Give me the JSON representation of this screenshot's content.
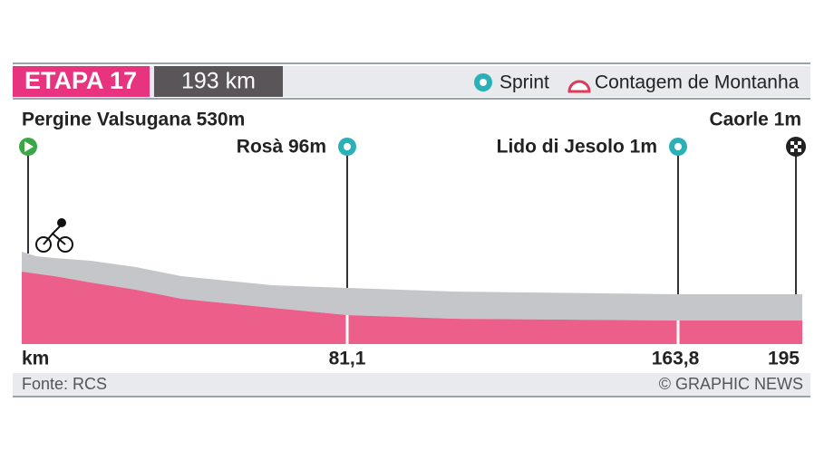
{
  "header": {
    "stage": "ETAPA 17",
    "distance": "193 km"
  },
  "legend": [
    {
      "label": "Sprint"
    },
    {
      "label": "Contagem de Montanha"
    }
  ],
  "locations": [
    {
      "label": "Pergine Valsugana 530m"
    },
    {
      "label": "Rosà 96m"
    },
    {
      "label": "Lido di Jesolo 1m"
    },
    {
      "label": "Caorle 1m"
    }
  ],
  "km_axis": {
    "unit": "km",
    "marks": [
      "81,1",
      "163,8",
      "195"
    ]
  },
  "footer": {
    "source": "Fonte: RCS",
    "credit": "© GRAPHIC NEWS"
  }
}
